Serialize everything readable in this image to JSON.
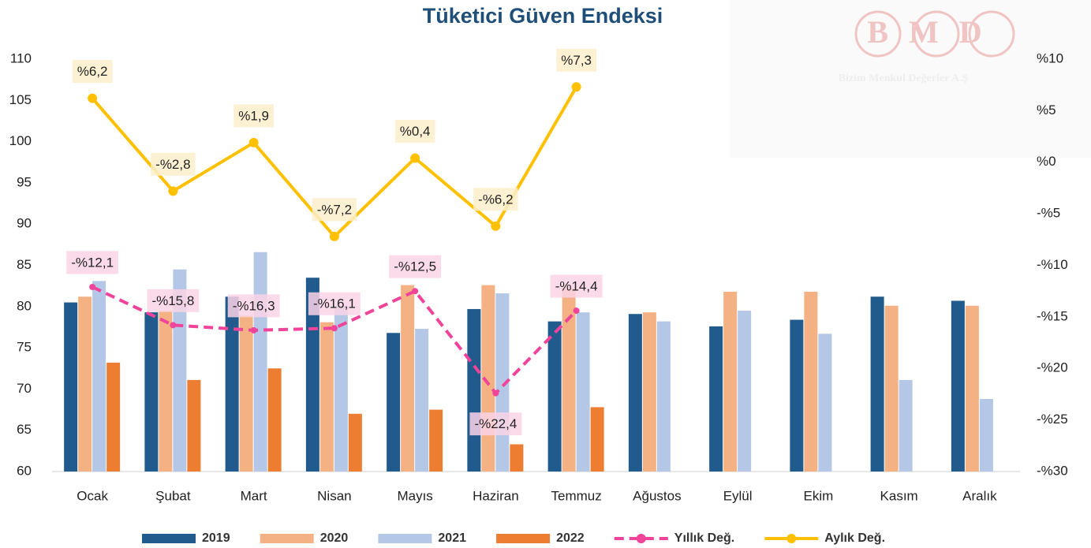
{
  "chart_data": {
    "type": "bar",
    "title": "Tüketici Güven Endeksi",
    "watermark": {
      "logo": "BMD",
      "name": "Bizim Menkul Değerler A.Ş"
    },
    "categories": [
      "Ocak",
      "Şubat",
      "Mart",
      "Nisan",
      "Mayıs",
      "Haziran",
      "Temmuz",
      "Ağustos",
      "Eylül",
      "Ekim",
      "Kasım",
      "Aralık"
    ],
    "ylim": [
      60,
      110
    ],
    "yticks": [
      60,
      65,
      70,
      75,
      80,
      85,
      90,
      95,
      100,
      105,
      110
    ],
    "y2lim": [
      -30,
      10
    ],
    "y2ticks": [
      {
        "value": -30,
        "label": "-%30"
      },
      {
        "value": -25,
        "label": "-%25"
      },
      {
        "value": -20,
        "label": "-%20"
      },
      {
        "value": -15,
        "label": "-%15"
      },
      {
        "value": -10,
        "label": "-%10"
      },
      {
        "value": -5,
        "label": "-%5"
      },
      {
        "value": 0,
        "label": "%0"
      },
      {
        "value": 5,
        "label": "%5"
      },
      {
        "value": 10,
        "label": "%10"
      }
    ],
    "legend": "bottom",
    "series": [
      {
        "name": "2019",
        "type": "bar",
        "color": "#215a8c",
        "values": [
          80.5,
          79.3,
          81.2,
          83.5,
          76.8,
          79.7,
          78.2,
          79.1,
          77.6,
          78.4,
          81.2,
          80.7
        ]
      },
      {
        "name": "2020",
        "type": "bar",
        "color": "#f4b183",
        "values": [
          81.2,
          79.5,
          78.9,
          78.1,
          82.6,
          82.6,
          82.2,
          79.3,
          81.8,
          81.8,
          80.1,
          80.1
        ]
      },
      {
        "name": "2021",
        "type": "bar",
        "color": "#b4c7e7",
        "values": [
          83.1,
          84.5,
          86.6,
          80.1,
          77.3,
          81.6,
          79.3,
          78.2,
          79.5,
          76.7,
          71.1,
          68.8
        ]
      },
      {
        "name": "2022",
        "type": "bar",
        "color": "#ed7d31",
        "values": [
          73.2,
          71.1,
          72.5,
          67.0,
          67.5,
          63.3,
          67.8,
          null,
          null,
          null,
          null,
          null
        ]
      },
      {
        "name": "Yıllık Değ.",
        "type": "line",
        "axis": "y2",
        "dashed": true,
        "color": "#f0439a",
        "label_background": "#fad3e6",
        "values": [
          -12.1,
          -15.8,
          -16.3,
          -16.1,
          -12.5,
          -22.4,
          -14.4,
          null,
          null,
          null,
          null,
          null
        ],
        "value_labels": [
          "-%12,1",
          "-%15,8",
          "-%16,3",
          "-%16,1",
          "-%12,5",
          "-%22,4",
          "-%14,4",
          null,
          null,
          null,
          null,
          null
        ]
      },
      {
        "name": "Aylık Değ.",
        "type": "line",
        "axis": "y2",
        "dashed": false,
        "markers": true,
        "color": "#ffc000",
        "label_background": "#fcefcb",
        "values": [
          6.2,
          -2.8,
          1.9,
          -7.2,
          0.4,
          -6.2,
          7.3,
          null,
          null,
          null,
          null,
          null
        ],
        "value_labels": [
          "%6,2",
          "-%2,8",
          "%1,9",
          "-%7,2",
          "%0,4",
          "-%6,2",
          "%7,3",
          null,
          null,
          null,
          null,
          null
        ]
      }
    ]
  }
}
